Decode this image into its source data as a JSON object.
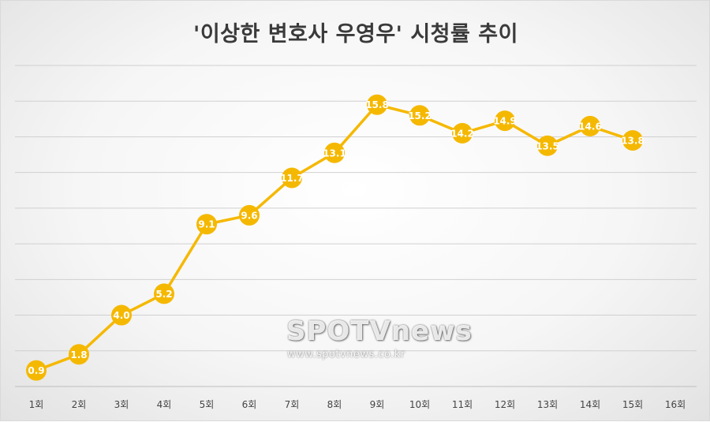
{
  "chart_data": {
    "type": "line",
    "title": "'이상한 변호사 우영우' 시청률 추이",
    "xlabel": "",
    "ylabel": "",
    "categories": [
      "1회",
      "2회",
      "3회",
      "4회",
      "5회",
      "6회",
      "7회",
      "8회",
      "9회",
      "10회",
      "11회",
      "12회",
      "13회",
      "14회",
      "15회",
      "16회"
    ],
    "series": [
      {
        "values": [
          0.9,
          1.8,
          4.0,
          5.2,
          9.1,
          9.6,
          11.7,
          13.1,
          15.8,
          15.2,
          14.2,
          14.9,
          13.5,
          14.6,
          13.8,
          null
        ],
        "labels": [
          "0.9",
          "1.8",
          "4.0",
          "5.2",
          "9.1",
          "9.6",
          "11.7",
          "13.1",
          "15.8",
          "15.2",
          "14.2",
          "14.9",
          "13.5",
          "14.6",
          "13.8",
          ""
        ],
        "color": "#f5b800"
      }
    ],
    "ylim": [
      0,
      18
    ],
    "grid": true,
    "legend": "none"
  },
  "watermark": {
    "logo": "SPOTVnews",
    "url": "www.spotvnews.co.kr"
  }
}
